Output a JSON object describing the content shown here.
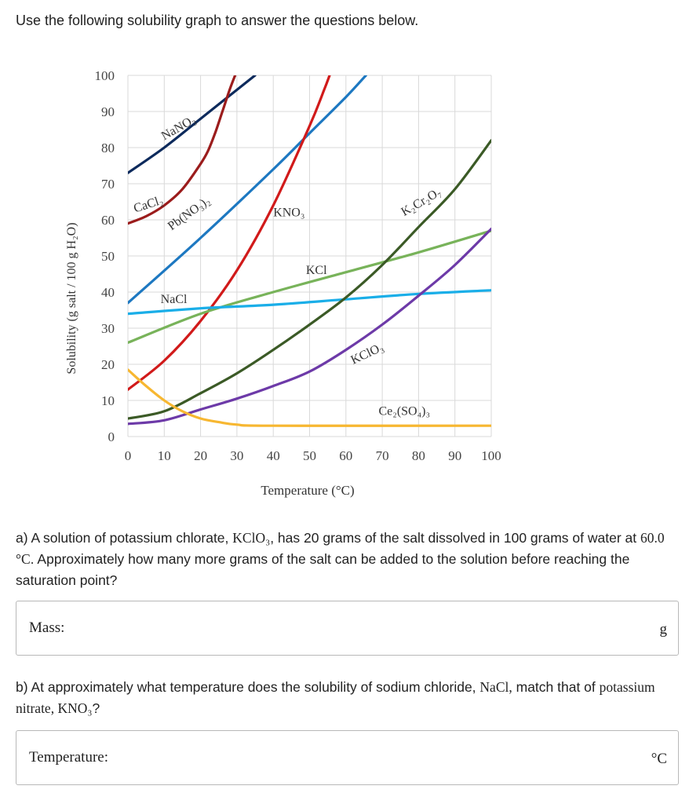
{
  "intro": "Use the following solubility graph to answer the questions below.",
  "question_a": {
    "text_before": "a) A solution of potassium chlorate, ",
    "formula": "KClO₃",
    "text_mid1": ", has 20 grams of the salt dissolved in 100 grams of water at ",
    "temp": "60.0 °C",
    "text_after": ". Approximately how many more grams of the salt can be added to the solution before reaching the saturation point?"
  },
  "answer_a": {
    "label": "Mass:",
    "unit": "g",
    "value": ""
  },
  "question_b": {
    "text_before": "b) At approximately what temperature does the solubility of sodium chloride, ",
    "formula1": "NaCl,",
    "text_mid": " match that of ",
    "formula2": "potassium nitrate, KNO₃",
    "text_after": "?"
  },
  "answer_b": {
    "label": "Temperature:",
    "unit": "°C",
    "value": ""
  },
  "chart_data": {
    "type": "line",
    "xlabel": "Temperature (°C)",
    "ylabel": "Solubility (g salt / 100 g H₂O)",
    "xlim": [
      0,
      100
    ],
    "ylim": [
      0,
      100
    ],
    "xticks": [
      "0",
      "10",
      "20",
      "30",
      "40",
      "50",
      "60",
      "70",
      "80",
      "90",
      "100"
    ],
    "yticks": [
      "0",
      "10",
      "20",
      "30",
      "40",
      "50",
      "60",
      "70",
      "80",
      "90",
      "100"
    ],
    "grid": true,
    "series": [
      {
        "name": "NaNO₃",
        "color": "#0d2a5c",
        "points": [
          [
            0,
            73
          ],
          [
            10,
            80
          ],
          [
            20,
            88
          ],
          [
            30,
            96
          ],
          [
            35,
            100
          ]
        ]
      },
      {
        "name": "CaCl₂",
        "color": "#9b1c1c",
        "points": [
          [
            0,
            59
          ],
          [
            5,
            61
          ],
          [
            10,
            64
          ],
          [
            15,
            68.5
          ],
          [
            20,
            75.5
          ],
          [
            22,
            79
          ],
          [
            24,
            84
          ],
          [
            26,
            90
          ],
          [
            28,
            96
          ],
          [
            29.5,
            100
          ]
        ]
      },
      {
        "name": "Pb(NO₃)₂",
        "color": "#1d78c1",
        "points": [
          [
            0,
            37
          ],
          [
            20,
            55
          ],
          [
            40,
            74
          ],
          [
            50,
            84
          ],
          [
            60,
            94
          ],
          [
            65.5,
            100
          ]
        ]
      },
      {
        "name": "KNO₃",
        "color": "#d11a1a",
        "points": [
          [
            0,
            13
          ],
          [
            10,
            21
          ],
          [
            20,
            32
          ],
          [
            30,
            46
          ],
          [
            40,
            64
          ],
          [
            50,
            86
          ],
          [
            54,
            96
          ],
          [
            55.5,
            100
          ]
        ]
      },
      {
        "name": "KCl",
        "color": "#78b35a",
        "points": [
          [
            0,
            26
          ],
          [
            20,
            34
          ],
          [
            40,
            40
          ],
          [
            60,
            45.5
          ],
          [
            80,
            51
          ],
          [
            100,
            57
          ]
        ]
      },
      {
        "name": "NaCl",
        "color": "#1aaee8",
        "points": [
          [
            0,
            34
          ],
          [
            20,
            35.5
          ],
          [
            40,
            36.5
          ],
          [
            60,
            38
          ],
          [
            80,
            39.5
          ],
          [
            100,
            40.5
          ]
        ]
      },
      {
        "name": "K₂Cr₂O₇",
        "color": "#3b5a26",
        "points": [
          [
            0,
            5
          ],
          [
            10,
            7
          ],
          [
            20,
            12
          ],
          [
            30,
            17.5
          ],
          [
            40,
            24
          ],
          [
            50,
            31
          ],
          [
            60,
            38.5
          ],
          [
            70,
            47.5
          ],
          [
            80,
            58
          ],
          [
            90,
            68.5
          ],
          [
            100,
            82
          ]
        ]
      },
      {
        "name": "KClO₃",
        "color": "#6d3aa8",
        "points": [
          [
            0,
            3.5
          ],
          [
            10,
            4.5
          ],
          [
            20,
            7.5
          ],
          [
            30,
            10.5
          ],
          [
            40,
            14
          ],
          [
            50,
            18
          ],
          [
            60,
            24
          ],
          [
            70,
            31
          ],
          [
            80,
            39
          ],
          [
            90,
            47.5
          ],
          [
            100,
            57.5
          ]
        ]
      },
      {
        "name": "Ce₂(SO₄)₃",
        "color": "#f7b731",
        "points": [
          [
            0,
            18.5
          ],
          [
            5,
            14
          ],
          [
            10,
            10
          ],
          [
            15,
            7
          ],
          [
            20,
            5
          ],
          [
            25,
            4
          ],
          [
            30,
            3.3
          ],
          [
            40,
            3
          ],
          [
            100,
            3
          ]
        ]
      }
    ],
    "labels": [
      {
        "text": "NaNO₃",
        "x": 10,
        "y": 82,
        "angle": -30
      },
      {
        "text": "CaCl₂",
        "x": 2,
        "y": 62,
        "angle": -18
      },
      {
        "text": "Pb(NO₃)₂",
        "x": 12,
        "y": 57,
        "angle": -36
      },
      {
        "text": "KNO₃",
        "x": 40,
        "y": 61,
        "angle": 0
      },
      {
        "text": "KCl",
        "x": 49,
        "y": 45,
        "angle": 0
      },
      {
        "text": "NaCl",
        "x": 9,
        "y": 37,
        "angle": 0
      },
      {
        "text": "K₂Cr₂O₇",
        "x": 76,
        "y": 61,
        "angle": -30
      },
      {
        "text": "KClO₃",
        "x": 62,
        "y": 20,
        "angle": -25
      },
      {
        "text": "Ce₂(SO₄)₃",
        "x": 69,
        "y": 6,
        "angle": 0
      }
    ]
  }
}
